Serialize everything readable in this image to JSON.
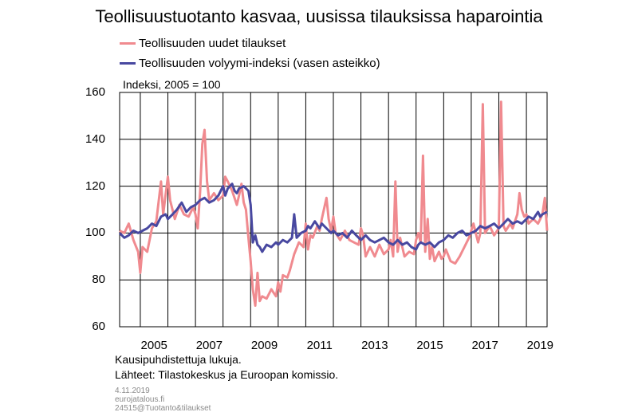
{
  "chart_data": {
    "type": "line",
    "title": "Teollisuustuotanto kasvaa, uusissa tilauksissa haparointia",
    "unit_label": "Indeksi, 2005 = 100",
    "ylim": [
      60,
      160
    ],
    "yticks": [
      60,
      80,
      100,
      120,
      140,
      160
    ],
    "xlim": [
      2004.25,
      2019.75
    ],
    "xticks": [
      "2005",
      "2007",
      "2009",
      "2011",
      "2013",
      "2015",
      "2017",
      "2019"
    ],
    "grid": true,
    "legend_position": "top-left",
    "series": [
      {
        "name": "Teollisuuden uudet tilaukset",
        "color": "#f08a8f",
        "points": [
          [
            2004.25,
            101
          ],
          [
            2004.42,
            100
          ],
          [
            2004.58,
            104
          ],
          [
            2004.75,
            97
          ],
          [
            2004.92,
            92
          ],
          [
            2005.0,
            83
          ],
          [
            2005.08,
            94
          ],
          [
            2005.25,
            92
          ],
          [
            2005.42,
            102
          ],
          [
            2005.58,
            105
          ],
          [
            2005.75,
            122
          ],
          [
            2005.83,
            108
          ],
          [
            2006.0,
            124
          ],
          [
            2006.08,
            114
          ],
          [
            2006.25,
            106
          ],
          [
            2006.42,
            112
          ],
          [
            2006.58,
            108
          ],
          [
            2006.75,
            107
          ],
          [
            2006.92,
            111
          ],
          [
            2007.0,
            108
          ],
          [
            2007.08,
            102
          ],
          [
            2007.17,
            118
          ],
          [
            2007.25,
            138
          ],
          [
            2007.33,
            144
          ],
          [
            2007.42,
            122
          ],
          [
            2007.5,
            114
          ],
          [
            2007.67,
            117
          ],
          [
            2007.83,
            114
          ],
          [
            2008.0,
            116
          ],
          [
            2008.08,
            124
          ],
          [
            2008.17,
            122
          ],
          [
            2008.33,
            118
          ],
          [
            2008.5,
            112
          ],
          [
            2008.58,
            116
          ],
          [
            2008.67,
            121
          ],
          [
            2008.75,
            113
          ],
          [
            2008.83,
            110
          ],
          [
            2008.92,
            98
          ],
          [
            2009.0,
            88
          ],
          [
            2009.08,
            76
          ],
          [
            2009.17,
            69
          ],
          [
            2009.25,
            83
          ],
          [
            2009.33,
            71
          ],
          [
            2009.42,
            73
          ],
          [
            2009.58,
            72
          ],
          [
            2009.75,
            76
          ],
          [
            2009.92,
            73
          ],
          [
            2010.0,
            79
          ],
          [
            2010.08,
            75
          ],
          [
            2010.17,
            82
          ],
          [
            2010.33,
            81
          ],
          [
            2010.42,
            84
          ],
          [
            2010.58,
            91
          ],
          [
            2010.75,
            96
          ],
          [
            2010.92,
            94
          ],
          [
            2011.0,
            104
          ],
          [
            2011.08,
            93
          ],
          [
            2011.17,
            99
          ],
          [
            2011.25,
            98
          ],
          [
            2011.42,
            103
          ],
          [
            2011.5,
            101
          ],
          [
            2011.58,
            106
          ],
          [
            2011.75,
            115
          ],
          [
            2011.83,
            106
          ],
          [
            2011.92,
            101
          ],
          [
            2012.0,
            107
          ],
          [
            2012.08,
            100
          ],
          [
            2012.25,
            97
          ],
          [
            2012.42,
            101
          ],
          [
            2012.58,
            97
          ],
          [
            2012.75,
            96
          ],
          [
            2012.92,
            95
          ],
          [
            2013.0,
            102
          ],
          [
            2013.08,
            99
          ],
          [
            2013.17,
            90
          ],
          [
            2013.33,
            94
          ],
          [
            2013.5,
            90
          ],
          [
            2013.67,
            95
          ],
          [
            2013.83,
            91
          ],
          [
            2014.0,
            93
          ],
          [
            2014.08,
            97
          ],
          [
            2014.17,
            90
          ],
          [
            2014.25,
            122
          ],
          [
            2014.33,
            92
          ],
          [
            2014.42,
            98
          ],
          [
            2014.58,
            90
          ],
          [
            2014.75,
            92
          ],
          [
            2014.92,
            91
          ],
          [
            2015.0,
            97
          ],
          [
            2015.08,
            100
          ],
          [
            2015.17,
            96
          ],
          [
            2015.25,
            133
          ],
          [
            2015.33,
            92
          ],
          [
            2015.42,
            106
          ],
          [
            2015.5,
            89
          ],
          [
            2015.58,
            94
          ],
          [
            2015.67,
            88
          ],
          [
            2015.83,
            92
          ],
          [
            2015.92,
            89
          ],
          [
            2016.0,
            90
          ],
          [
            2016.08,
            93
          ],
          [
            2016.25,
            88
          ],
          [
            2016.42,
            87
          ],
          [
            2016.58,
            90
          ],
          [
            2016.75,
            94
          ],
          [
            2016.92,
            98
          ],
          [
            2017.0,
            101
          ],
          [
            2017.08,
            104
          ],
          [
            2017.25,
            96
          ],
          [
            2017.33,
            100
          ],
          [
            2017.42,
            155
          ],
          [
            2017.5,
            100
          ],
          [
            2017.67,
            103
          ],
          [
            2017.83,
            99
          ],
          [
            2018.0,
            102
          ],
          [
            2018.08,
            156
          ],
          [
            2018.17,
            103
          ],
          [
            2018.25,
            101
          ],
          [
            2018.42,
            104
          ],
          [
            2018.5,
            102
          ],
          [
            2018.67,
            108
          ],
          [
            2018.75,
            117
          ],
          [
            2018.83,
            110
          ],
          [
            2018.92,
            107
          ],
          [
            2019.0,
            108
          ],
          [
            2019.08,
            104
          ],
          [
            2019.25,
            106
          ],
          [
            2019.42,
            104
          ],
          [
            2019.5,
            106
          ],
          [
            2019.58,
            108
          ],
          [
            2019.67,
            115
          ],
          [
            2019.75,
            101
          ]
        ]
      },
      {
        "name": "Teollisuuden volyymi-indeksi (vasen asteikko)",
        "color": "#4848a0",
        "points": [
          [
            2004.25,
            100
          ],
          [
            2004.42,
            98
          ],
          [
            2004.58,
            99
          ],
          [
            2004.75,
            101
          ],
          [
            2004.92,
            100
          ],
          [
            2005.08,
            101
          ],
          [
            2005.25,
            102
          ],
          [
            2005.42,
            104
          ],
          [
            2005.58,
            103
          ],
          [
            2005.75,
            107
          ],
          [
            2005.92,
            108
          ],
          [
            2006.0,
            106
          ],
          [
            2006.17,
            108
          ],
          [
            2006.33,
            110
          ],
          [
            2006.5,
            113
          ],
          [
            2006.67,
            109
          ],
          [
            2006.83,
            111
          ],
          [
            2007.0,
            112
          ],
          [
            2007.17,
            114
          ],
          [
            2007.33,
            115
          ],
          [
            2007.5,
            113
          ],
          [
            2007.67,
            114
          ],
          [
            2007.83,
            116
          ],
          [
            2008.0,
            120
          ],
          [
            2008.08,
            116
          ],
          [
            2008.17,
            119
          ],
          [
            2008.33,
            121
          ],
          [
            2008.42,
            118
          ],
          [
            2008.5,
            117
          ],
          [
            2008.58,
            119
          ],
          [
            2008.75,
            120
          ],
          [
            2008.92,
            118
          ],
          [
            2009.0,
            112
          ],
          [
            2009.08,
            96
          ],
          [
            2009.17,
            99
          ],
          [
            2009.25,
            95
          ],
          [
            2009.33,
            94
          ],
          [
            2009.42,
            92
          ],
          [
            2009.58,
            95
          ],
          [
            2009.75,
            94
          ],
          [
            2009.92,
            96
          ],
          [
            2010.0,
            95
          ],
          [
            2010.17,
            97
          ],
          [
            2010.33,
            96
          ],
          [
            2010.5,
            98
          ],
          [
            2010.58,
            108
          ],
          [
            2010.67,
            98
          ],
          [
            2010.83,
            100
          ],
          [
            2011.0,
            101
          ],
          [
            2011.08,
            103
          ],
          [
            2011.17,
            102
          ],
          [
            2011.33,
            105
          ],
          [
            2011.5,
            102
          ],
          [
            2011.58,
            104
          ],
          [
            2011.75,
            102
          ],
          [
            2011.92,
            100
          ],
          [
            2012.0,
            101
          ],
          [
            2012.17,
            99
          ],
          [
            2012.33,
            100
          ],
          [
            2012.5,
            98
          ],
          [
            2012.67,
            101
          ],
          [
            2012.83,
            99
          ],
          [
            2013.0,
            97
          ],
          [
            2013.17,
            99
          ],
          [
            2013.33,
            97
          ],
          [
            2013.5,
            96
          ],
          [
            2013.67,
            97
          ],
          [
            2013.83,
            98
          ],
          [
            2014.0,
            96
          ],
          [
            2014.17,
            95
          ],
          [
            2014.33,
            97
          ],
          [
            2014.5,
            95
          ],
          [
            2014.67,
            96
          ],
          [
            2014.83,
            94
          ],
          [
            2015.0,
            93
          ],
          [
            2015.08,
            95
          ],
          [
            2015.17,
            96
          ],
          [
            2015.33,
            95
          ],
          [
            2015.5,
            96
          ],
          [
            2015.67,
            94
          ],
          [
            2015.83,
            96
          ],
          [
            2016.0,
            97
          ],
          [
            2016.17,
            99
          ],
          [
            2016.33,
            98
          ],
          [
            2016.5,
            100
          ],
          [
            2016.67,
            101
          ],
          [
            2016.83,
            99
          ],
          [
            2017.0,
            100
          ],
          [
            2017.17,
            101
          ],
          [
            2017.33,
            103
          ],
          [
            2017.5,
            102
          ],
          [
            2017.67,
            103
          ],
          [
            2017.83,
            104
          ],
          [
            2018.0,
            102
          ],
          [
            2018.17,
            104
          ],
          [
            2018.33,
            106
          ],
          [
            2018.5,
            104
          ],
          [
            2018.67,
            105
          ],
          [
            2018.83,
            104
          ],
          [
            2019.0,
            106
          ],
          [
            2019.08,
            107
          ],
          [
            2019.25,
            106
          ],
          [
            2019.42,
            109
          ],
          [
            2019.5,
            107
          ],
          [
            2019.58,
            108
          ],
          [
            2019.75,
            109
          ]
        ]
      }
    ]
  },
  "notes": {
    "line1": "Kausipuhdistettuja lukuja.",
    "line2": "Lähteet: Tilastokeskus ja Euroopan komissio.",
    "date": "4.11.2019",
    "site": "eurojatalous.fi",
    "code": "24515@Tuotanto&tilaukset"
  }
}
